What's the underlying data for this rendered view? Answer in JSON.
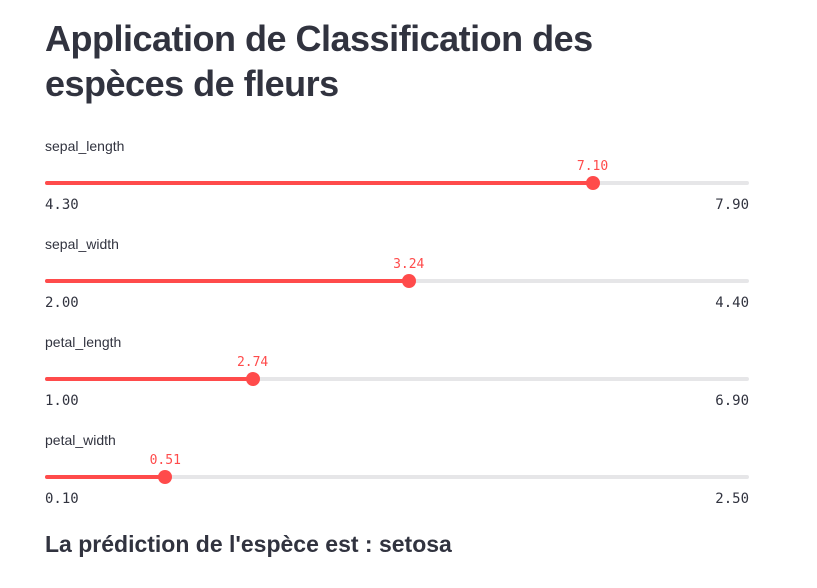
{
  "app": {
    "title": "Application de Classification des espèces de fleurs",
    "prediction_text": "La prédiction de l'espèce est : setosa"
  },
  "colors": {
    "accent": "#ff4b4b",
    "track_inactive": "#e6e6e8",
    "text_dark": "#31333f"
  },
  "sliders": [
    {
      "label": "sepal_length",
      "min": 4.3,
      "max": 7.9,
      "value": 7.1,
      "value_display": "7.10",
      "min_display": "4.30",
      "max_display": "7.90"
    },
    {
      "label": "sepal_width",
      "min": 2.0,
      "max": 4.4,
      "value": 3.24,
      "value_display": "3.24",
      "min_display": "2.00",
      "max_display": "4.40"
    },
    {
      "label": "petal_length",
      "min": 1.0,
      "max": 6.9,
      "value": 2.74,
      "value_display": "2.74",
      "min_display": "1.00",
      "max_display": "6.90"
    },
    {
      "label": "petal_width",
      "min": 0.1,
      "max": 2.5,
      "value": 0.51,
      "value_display": "0.51",
      "min_display": "0.10",
      "max_display": "2.50"
    }
  ]
}
